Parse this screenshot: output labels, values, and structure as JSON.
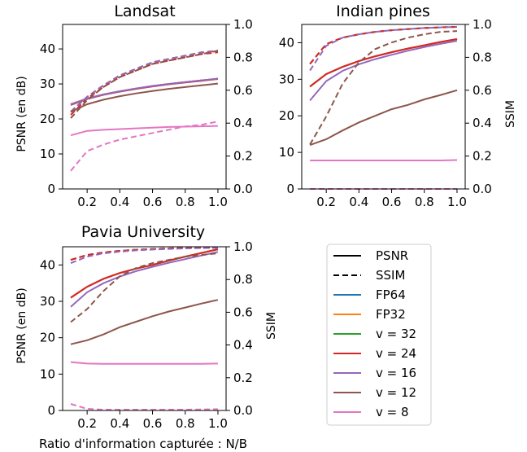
{
  "figure": {
    "xlabel": "Ratio d'information capturée : N/B"
  },
  "legend": {
    "entries": [
      {
        "label": "PSNR",
        "color": "#000000",
        "style": "solid"
      },
      {
        "label": "SSIM",
        "color": "#000000",
        "style": "dashed"
      },
      {
        "label": "FP64",
        "color": "#1f77b4",
        "style": "solid"
      },
      {
        "label": "FP32",
        "color": "#ff7f0e",
        "style": "solid"
      },
      {
        "label": "v = 32",
        "color": "#2ca02c",
        "style": "solid"
      },
      {
        "label": "v = 24",
        "color": "#d62728",
        "style": "solid"
      },
      {
        "label": "v = 16",
        "color": "#9467bd",
        "style": "solid"
      },
      {
        "label": "v = 12",
        "color": "#8c564b",
        "style": "solid"
      },
      {
        "label": "v = 8",
        "color": "#e377c2",
        "style": "solid"
      }
    ]
  },
  "chart_data": [
    {
      "type": "line",
      "title": "Landsat",
      "ylabel": "PSNR (en dB)",
      "y2label": "",
      "xlim": [
        0.05,
        1.05
      ],
      "ylim": [
        0,
        47
      ],
      "y2lim": [
        0,
        1.0
      ],
      "xticks": [
        "0.2",
        "0.4",
        "0.6",
        "0.8",
        "1.0"
      ],
      "yticks": [
        "0",
        "10",
        "20",
        "30",
        "40"
      ],
      "y2ticks": [
        "0.0",
        "0.2",
        "0.4",
        "0.6",
        "0.8",
        "1.0"
      ],
      "x": [
        0.1,
        0.2,
        0.3,
        0.4,
        0.5,
        0.6,
        0.7,
        0.8,
        0.9,
        1.0
      ],
      "series": [
        {
          "name": "v = 32",
          "color": "#2ca02c",
          "psnr": [
            24.2,
            25.8,
            27.0,
            27.9,
            28.7,
            29.4,
            30.0,
            30.5,
            31.0,
            31.5
          ],
          "ssim": [
            0.47,
            0.56,
            0.63,
            0.69,
            0.73,
            0.77,
            0.79,
            0.81,
            0.83,
            0.84
          ]
        },
        {
          "name": "FP64",
          "color": "#1f77b4",
          "psnr": [
            24.2,
            25.8,
            27.0,
            27.9,
            28.7,
            29.4,
            30.0,
            30.5,
            31.0,
            31.5
          ],
          "ssim": [
            0.47,
            0.56,
            0.63,
            0.69,
            0.73,
            0.77,
            0.79,
            0.81,
            0.83,
            0.84
          ]
        },
        {
          "name": "FP32",
          "color": "#ff7f0e",
          "psnr": [
            24.2,
            25.8,
            27.0,
            27.9,
            28.7,
            29.4,
            30.0,
            30.5,
            31.0,
            31.5
          ],
          "ssim": [
            0.47,
            0.56,
            0.63,
            0.69,
            0.73,
            0.77,
            0.79,
            0.81,
            0.83,
            0.84
          ]
        },
        {
          "name": "v = 24",
          "color": "#d62728",
          "psnr": [
            24.0,
            25.7,
            26.9,
            27.8,
            28.6,
            29.3,
            29.9,
            30.4,
            30.9,
            31.4
          ],
          "ssim": [
            0.45,
            0.55,
            0.62,
            0.68,
            0.72,
            0.76,
            0.78,
            0.8,
            0.82,
            0.83
          ]
        },
        {
          "name": "v = 16",
          "color": "#9467bd",
          "psnr": [
            24.1,
            25.8,
            27.0,
            27.9,
            28.7,
            29.4,
            30.0,
            30.5,
            31.0,
            31.5
          ],
          "ssim": [
            0.47,
            0.56,
            0.63,
            0.69,
            0.73,
            0.77,
            0.79,
            0.81,
            0.83,
            0.84
          ]
        },
        {
          "name": "v = 12",
          "color": "#8c564b",
          "psnr": [
            22.0,
            24.2,
            25.5,
            26.5,
            27.3,
            28.0,
            28.6,
            29.1,
            29.6,
            30.1
          ],
          "ssim": [
            0.43,
            0.54,
            0.62,
            0.68,
            0.72,
            0.76,
            0.78,
            0.8,
            0.82,
            0.84
          ]
        },
        {
          "name": "v = 8",
          "color": "#e377c2",
          "psnr": [
            15.3,
            16.6,
            16.9,
            17.1,
            17.3,
            17.5,
            17.7,
            17.8,
            17.9,
            18.0
          ],
          "ssim": [
            0.11,
            0.23,
            0.27,
            0.3,
            0.32,
            0.34,
            0.36,
            0.38,
            0.39,
            0.41
          ]
        }
      ]
    },
    {
      "type": "line",
      "title": "Indian pines",
      "ylabel": "",
      "y2label": "SSIM",
      "xlim": [
        0.05,
        1.05
      ],
      "ylim": [
        0,
        45
      ],
      "y2lim": [
        0,
        1.0
      ],
      "xticks": [
        "0.2",
        "0.4",
        "0.6",
        "0.8",
        "1.0"
      ],
      "yticks": [
        "0",
        "10",
        "20",
        "30",
        "40"
      ],
      "y2ticks": [
        "0.0",
        "0.2",
        "0.4",
        "0.6",
        "0.8",
        "1.0"
      ],
      "x": [
        0.1,
        0.2,
        0.3,
        0.4,
        0.5,
        0.6,
        0.7,
        0.8,
        0.9,
        1.0
      ],
      "series": [
        {
          "name": "v = 32",
          "color": "#2ca02c",
          "psnr": [
            28.0,
            31.4,
            33.4,
            35.0,
            36.3,
            37.4,
            38.4,
            39.3,
            40.2,
            41.0
          ],
          "ssim": [
            0.76,
            0.88,
            0.92,
            0.94,
            0.955,
            0.965,
            0.972,
            0.978,
            0.982,
            0.985
          ]
        },
        {
          "name": "FP64",
          "color": "#1f77b4",
          "psnr": [
            28.0,
            31.4,
            33.4,
            35.0,
            36.3,
            37.4,
            38.4,
            39.3,
            40.2,
            41.0
          ],
          "ssim": [
            0.76,
            0.88,
            0.92,
            0.94,
            0.955,
            0.965,
            0.972,
            0.978,
            0.982,
            0.985
          ]
        },
        {
          "name": "FP32",
          "color": "#ff7f0e",
          "psnr": [
            28.0,
            31.4,
            33.4,
            35.0,
            36.3,
            37.4,
            38.4,
            39.3,
            40.2,
            41.0
          ],
          "ssim": [
            0.76,
            0.88,
            0.92,
            0.94,
            0.955,
            0.965,
            0.972,
            0.978,
            0.982,
            0.985
          ]
        },
        {
          "name": "v = 24",
          "color": "#d62728",
          "psnr": [
            28.0,
            31.4,
            33.4,
            35.0,
            36.3,
            37.4,
            38.4,
            39.3,
            40.2,
            41.0
          ],
          "ssim": [
            0.76,
            0.88,
            0.92,
            0.94,
            0.955,
            0.965,
            0.972,
            0.978,
            0.982,
            0.985
          ]
        },
        {
          "name": "v = 16",
          "color": "#9467bd",
          "psnr": [
            24.2,
            29.5,
            32.3,
            34.1,
            35.5,
            36.7,
            37.8,
            38.8,
            39.7,
            40.5
          ],
          "ssim": [
            0.72,
            0.87,
            0.92,
            0.94,
            0.955,
            0.965,
            0.972,
            0.978,
            0.982,
            0.985
          ]
        },
        {
          "name": "v = 12",
          "color": "#8c564b",
          "psnr": [
            12.0,
            13.6,
            16.0,
            18.2,
            20.0,
            21.8,
            23.0,
            24.5,
            25.7,
            27.0
          ],
          "ssim": [
            0.27,
            0.44,
            0.64,
            0.77,
            0.85,
            0.89,
            0.92,
            0.94,
            0.955,
            0.96
          ]
        },
        {
          "name": "v = 8",
          "color": "#e377c2",
          "psnr": [
            7.8,
            7.8,
            7.8,
            7.8,
            7.8,
            7.8,
            7.8,
            7.8,
            7.8,
            7.9
          ],
          "ssim": [
            0.0,
            0.0,
            0.0,
            0.0,
            0.0,
            0.0,
            0.0,
            0.0,
            0.0,
            0.0
          ]
        }
      ]
    },
    {
      "type": "line",
      "title": "Pavia University",
      "ylabel": "PSNR (en dB)",
      "y2label": "SSIM",
      "xlim": [
        0.05,
        1.05
      ],
      "ylim": [
        0,
        45
      ],
      "y2lim": [
        0,
        1.0
      ],
      "xticks": [
        "0.2",
        "0.4",
        "0.6",
        "0.8",
        "1.0"
      ],
      "yticks": [
        "0",
        "10",
        "20",
        "30",
        "40"
      ],
      "y2ticks": [
        "0.0",
        "0.2",
        "0.4",
        "0.6",
        "0.8",
        "1.0"
      ],
      "x": [
        0.1,
        0.2,
        0.3,
        0.4,
        0.5,
        0.6,
        0.7,
        0.8,
        0.9,
        1.0
      ],
      "series": [
        {
          "name": "v = 32",
          "color": "#2ca02c",
          "psnr": [
            31.0,
            34.0,
            36.2,
            37.8,
            39.0,
            40.0,
            41.2,
            42.3,
            43.3,
            44.3
          ],
          "ssim": [
            0.92,
            0.95,
            0.965,
            0.975,
            0.982,
            0.986,
            0.99,
            0.992,
            0.994,
            0.995
          ]
        },
        {
          "name": "FP64",
          "color": "#1f77b4",
          "psnr": [
            31.0,
            34.0,
            36.2,
            37.8,
            39.0,
            40.0,
            41.2,
            42.3,
            43.3,
            44.3
          ],
          "ssim": [
            0.92,
            0.95,
            0.965,
            0.975,
            0.982,
            0.986,
            0.99,
            0.992,
            0.994,
            0.995
          ]
        },
        {
          "name": "FP32",
          "color": "#ff7f0e",
          "psnr": [
            31.0,
            34.0,
            36.2,
            37.8,
            39.0,
            40.0,
            41.2,
            42.3,
            43.3,
            44.3
          ],
          "ssim": [
            0.92,
            0.95,
            0.965,
            0.975,
            0.982,
            0.986,
            0.99,
            0.992,
            0.994,
            0.995
          ]
        },
        {
          "name": "v = 24",
          "color": "#d62728",
          "psnr": [
            31.0,
            34.0,
            36.2,
            37.8,
            39.0,
            40.0,
            41.2,
            42.3,
            43.3,
            44.3
          ],
          "ssim": [
            0.92,
            0.95,
            0.965,
            0.975,
            0.982,
            0.986,
            0.99,
            0.992,
            0.994,
            0.995
          ]
        },
        {
          "name": "v = 16",
          "color": "#9467bd",
          "psnr": [
            28.5,
            32.5,
            35.0,
            36.8,
            38.3,
            39.5,
            40.6,
            41.6,
            42.6,
            43.6
          ],
          "ssim": [
            0.9,
            0.94,
            0.96,
            0.97,
            0.978,
            0.983,
            0.987,
            0.99,
            0.992,
            0.993
          ]
        },
        {
          "name": "v = 12",
          "color": "#8c564b",
          "psnr": [
            18.2,
            19.3,
            20.9,
            22.9,
            24.4,
            25.9,
            27.2,
            28.3,
            29.4,
            30.4
          ],
          "ssim": [
            0.54,
            0.62,
            0.73,
            0.82,
            0.87,
            0.9,
            0.92,
            0.94,
            0.95,
            0.96
          ]
        },
        {
          "name": "v = 8",
          "color": "#e377c2",
          "psnr": [
            13.3,
            12.9,
            12.8,
            12.8,
            12.8,
            12.8,
            12.8,
            12.8,
            12.8,
            12.9
          ],
          "ssim": [
            0.04,
            0.01,
            0.005,
            0.005,
            0.005,
            0.005,
            0.005,
            0.005,
            0.006,
            0.008
          ]
        }
      ]
    }
  ]
}
